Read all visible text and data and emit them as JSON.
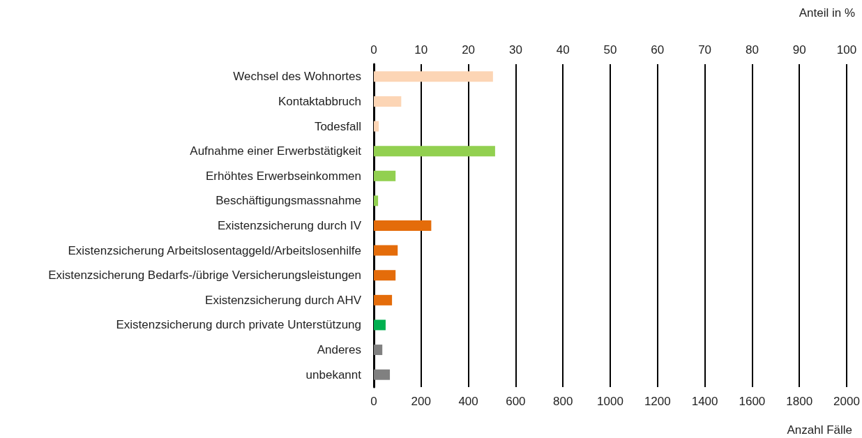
{
  "chart_data": {
    "type": "bar",
    "orientation": "horizontal",
    "xlabel": "Anzahl Fälle",
    "x2label": "Anteil in %",
    "categories": [
      "Wechsel des Wohnortes",
      "Kontaktabbruch",
      "Todesfall",
      "Aufnahme einer Erwerbstätigkeit",
      "Erhöhtes Erwerbseinkommen",
      "Beschäftigungsmassnahme",
      "Existenzsicherung durch IV",
      "Existenzsicherung Arbeitslosentaggeld/Arbeitslosenhilfe",
      "Existenzsicherung Bedarfs-/übrige Versicherungsleistungen",
      "Existenzsicherung durch AHV",
      "Existenzsicherung durch private Unterstützung",
      "Anderes",
      "unbekannt"
    ],
    "values": [
      504,
      116,
      21,
      513,
      92,
      18,
      243,
      101,
      92,
      77,
      50,
      36,
      68
    ],
    "colors": [
      "#fcd5b5",
      "#fcd5b5",
      "#fcd5b5",
      "#92d050",
      "#92d050",
      "#92d050",
      "#e46c0a",
      "#e46c0a",
      "#e46c0a",
      "#e46c0a",
      "#00b050",
      "#808080",
      "#808080"
    ],
    "xlim": [
      0,
      2000
    ],
    "xticks": [
      0,
      200,
      400,
      600,
      800,
      1000,
      1200,
      1400,
      1600,
      1800,
      2000
    ],
    "x2lim": [
      0,
      100
    ],
    "x2ticks": [
      0,
      10,
      20,
      30,
      40,
      50,
      60,
      70,
      80,
      90,
      100
    ],
    "grid": "x"
  }
}
